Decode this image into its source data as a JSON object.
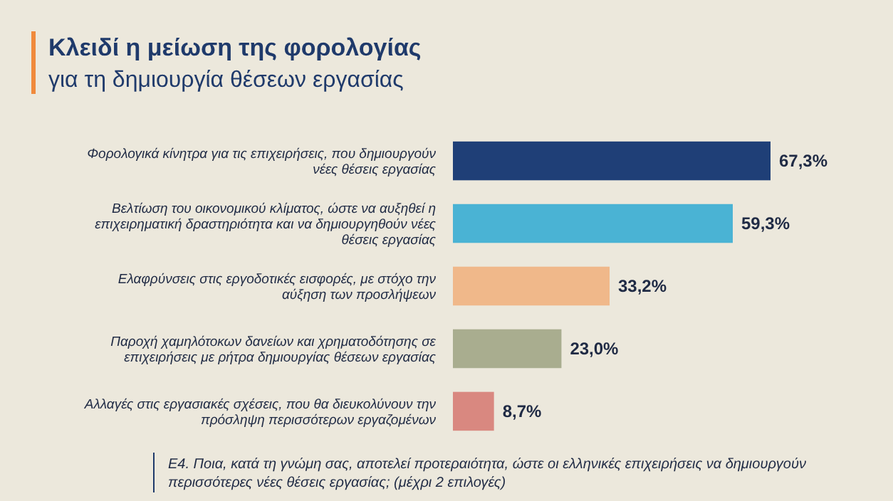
{
  "chart_data": {
    "type": "bar",
    "orientation": "horizontal",
    "title": "Κλειδί η μείωση της φορολογίας",
    "subtitle": "για τη δημιουργία θέσεων εργασίας",
    "categories": [
      "Φορολογικά κίνητρα για τις επιχειρήσεις, που δημιουργούν νέες θέσεις εργασίας",
      "Βελτίωση του οικονομικού κλίματος, ώστε να αυξηθεί η επιχειρηματική δραστηριότητα και να δημιουργηθούν νέες θέσεις εργασίας",
      "Ελαφρύνσεις στις εργοδοτικές εισφορές, με στόχο την αύξηση των προσλήψεων",
      "Παροχή χαμηλότοκων δανείων και χρηματοδότησης σε επιχειρήσεις με ρήτρα δημιουργίας θέσεων εργασίας",
      "Αλλαγές στις εργασιακές σχέσεις, που θα διευκολύνουν την πρόσληψη περισσότερων εργαζομένων"
    ],
    "values": [
      67.3,
      59.3,
      33.2,
      23.0,
      8.7
    ],
    "colors": [
      "#1f3f77",
      "#4ab3d4",
      "#f0b88a",
      "#a9ad8f",
      "#d98880"
    ],
    "value_labels": [
      "67,3%",
      "59,3%",
      "33,2%",
      "23,0%",
      "8,7%"
    ],
    "annotations": [
      "Ε4. Ποια, κατά τη γνώμη σας, αποτελεί προτεραιότητα, ώστε οι ελληνικές επιχειρήσεις να δημιουργούν περισσότερες νέες θέσεις εργασίας; (μέχρι 2 επιλογές)"
    ]
  }
}
